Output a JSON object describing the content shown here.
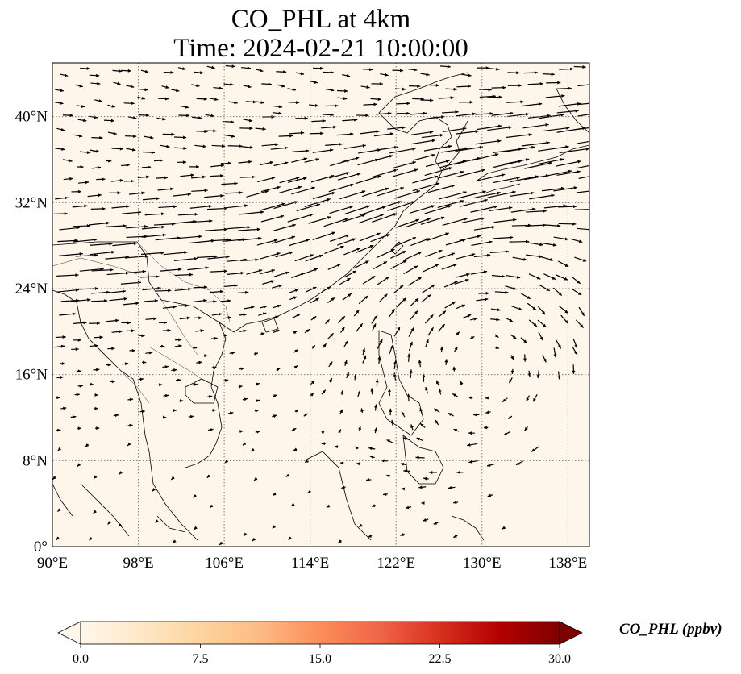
{
  "title": {
    "line1": "CO_PHL at 4km",
    "line2": "Time: 2024-02-21 10:00:00"
  },
  "map": {
    "lon_range": [
      90,
      140
    ],
    "lat_range": [
      0,
      45
    ],
    "gridlines": "dotted",
    "x_ticks": [
      {
        "value": 90,
        "label": "90°E"
      },
      {
        "value": 98,
        "label": "98°E"
      },
      {
        "value": 106,
        "label": "106°E"
      },
      {
        "value": 114,
        "label": "114°E"
      },
      {
        "value": 122,
        "label": "122°E"
      },
      {
        "value": 130,
        "label": "130°E"
      },
      {
        "value": 138,
        "label": "138°E"
      }
    ],
    "y_ticks": [
      {
        "value": 0,
        "label": "0°"
      },
      {
        "value": 8,
        "label": "8°N"
      },
      {
        "value": 16,
        "label": "16°N"
      },
      {
        "value": 24,
        "label": "24°N"
      },
      {
        "value": 32,
        "label": "32°N"
      },
      {
        "value": 40,
        "label": "40°N"
      }
    ],
    "field_value": "near 0.0 ppbv over whole domain",
    "wind_features": "westerly jet 24-40°N, anticyclone centered ~20°N 130°E"
  },
  "colorbar": {
    "title": "CO_PHL (ppbv)",
    "colormap": "OrRd",
    "range": [
      0,
      30
    ],
    "extend": "both",
    "ticks": [
      {
        "value": 0,
        "label": "0.0"
      },
      {
        "value": 7.5,
        "label": "7.5"
      },
      {
        "value": 15,
        "label": "15.0"
      },
      {
        "value": 22.5,
        "label": "22.5"
      },
      {
        "value": 30,
        "label": "30.0"
      }
    ],
    "colors": [
      "#fff7ec",
      "#fee8c8",
      "#fdd49e",
      "#fdbb84",
      "#fc8d59",
      "#ef6548",
      "#d7301f",
      "#b30000",
      "#7f0000"
    ]
  }
}
